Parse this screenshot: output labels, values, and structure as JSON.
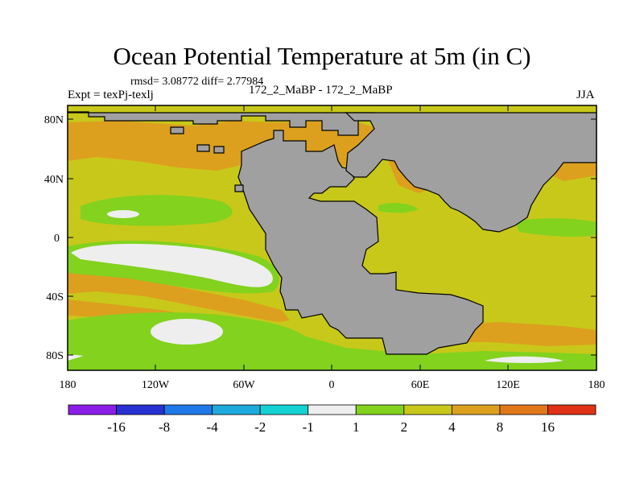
{
  "header": {
    "title": "Ocean Potential Temperature at 5m (in C)",
    "stats": "rmsd= 3.08772 diff= 2.77984",
    "left_label": "Expt = texPj-texlj",
    "center_label": "172_2_MaBP - 172_2_MaBP",
    "right_label": "JJA"
  },
  "map": {
    "lat_ticks": [
      "80N",
      "40N",
      "0",
      "40S",
      "80S"
    ],
    "lon_ticks": [
      "180",
      "120W",
      "60W",
      "0",
      "60E",
      "120E",
      "180"
    ],
    "land_color": "#a0a0a0",
    "fill_colors": {
      "bg_2_4": "#c8c81a",
      "band_4_8": "#dca01e",
      "band_8_16": "#e0781a",
      "band_1_2": "#82d21e",
      "band_neg1_1": "#eeeeee"
    }
  },
  "colorbar": {
    "colors": [
      "#8a1ee6",
      "#2830d2",
      "#1e78e6",
      "#1eaadc",
      "#14d2d2",
      "#eeeeee",
      "#82d21e",
      "#c8c81a",
      "#dca01e",
      "#e0781a",
      "#e03214"
    ],
    "labels": [
      "-16",
      "-8",
      "-4",
      "-2",
      "-1",
      "1",
      "2",
      "4",
      "8",
      "16"
    ]
  }
}
